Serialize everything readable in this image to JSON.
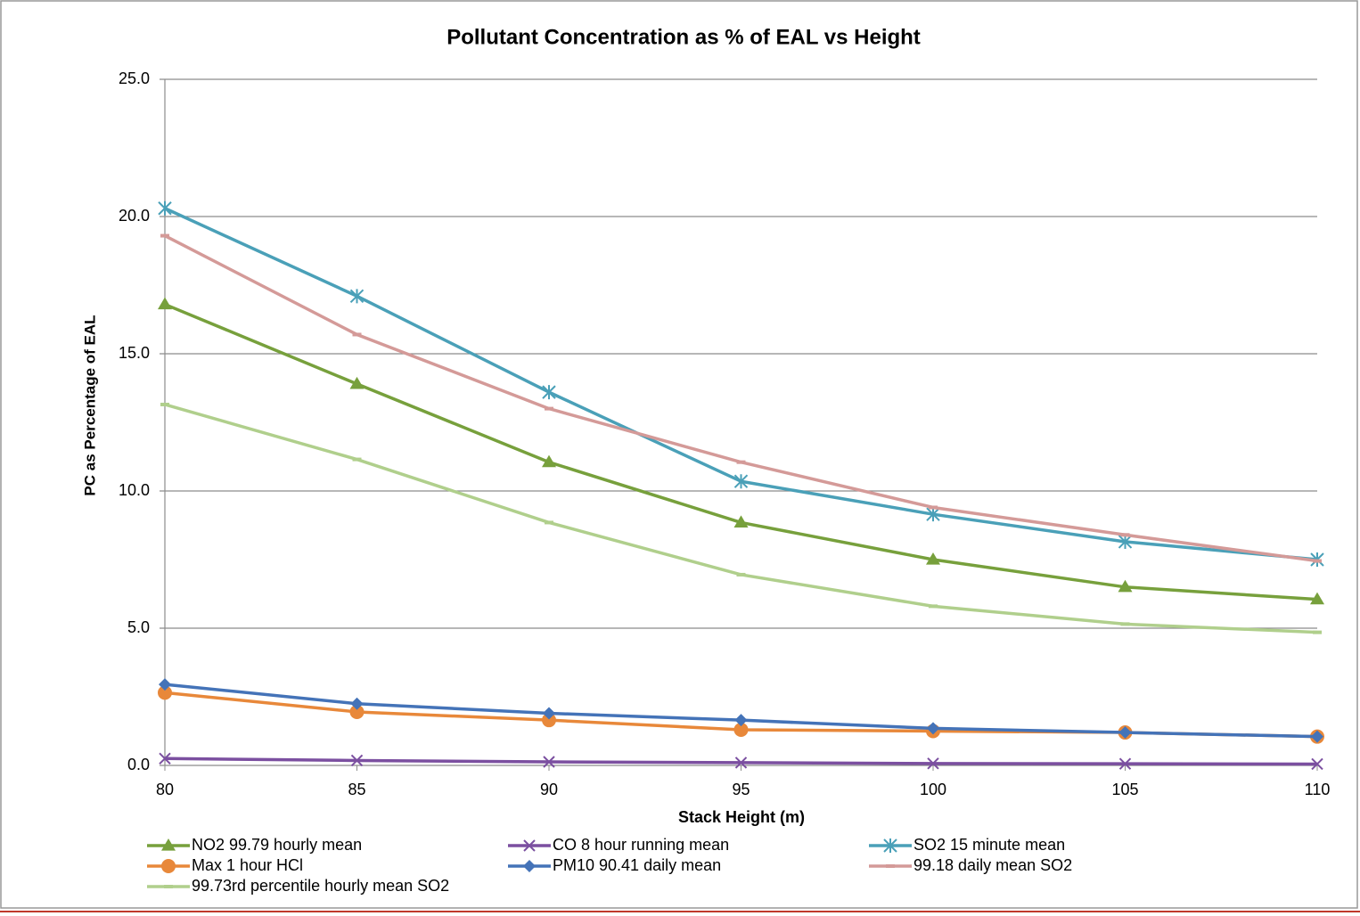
{
  "chart_data": {
    "type": "line",
    "title": "Pollutant Concentration as % of EAL vs Height",
    "xlabel": "Stack Height (m)",
    "ylabel": "PC as Percentage of EAL",
    "x": [
      80,
      85,
      90,
      95,
      100,
      105,
      110
    ],
    "xlim": [
      80,
      110
    ],
    "xticks": [
      80,
      85,
      90,
      95,
      100,
      105,
      110
    ],
    "ylim": [
      0,
      25
    ],
    "yticks": [
      {
        "value": 0,
        "label": "0.0"
      },
      {
        "value": 5,
        "label": "5.0"
      },
      {
        "value": 10,
        "label": "10.0"
      },
      {
        "value": 15,
        "label": "15.0"
      },
      {
        "value": 20,
        "label": "20.0"
      },
      {
        "value": 25,
        "label": "25.0"
      }
    ],
    "grid": true,
    "legend": "bottom",
    "series": [
      {
        "name": "NO2 99.79 hourly mean",
        "color": "#77a03c",
        "marker": "triangle",
        "values": [
          16.8,
          13.9,
          11.05,
          8.85,
          7.5,
          6.5,
          6.05
        ]
      },
      {
        "name": "CO 8 hour running mean",
        "color": "#7b4fa0",
        "marker": "x",
        "values": [
          0.25,
          0.18,
          0.13,
          0.1,
          0.07,
          0.06,
          0.05
        ]
      },
      {
        "name": "SO2 15 minute mean",
        "color": "#4aa0b8",
        "marker": "star",
        "values": [
          20.3,
          17.1,
          13.6,
          10.35,
          9.15,
          8.15,
          7.5
        ]
      },
      {
        "name": "Max 1 hour HCl",
        "color": "#e8883a",
        "marker": "circle",
        "values": [
          2.65,
          1.95,
          1.65,
          1.3,
          1.25,
          1.2,
          1.05
        ]
      },
      {
        "name": "PM10 90.41 daily mean",
        "color": "#4473b8",
        "marker": "diamond",
        "values": [
          2.95,
          2.25,
          1.9,
          1.65,
          1.35,
          1.2,
          1.05
        ]
      },
      {
        "name": "99.18 daily mean SO2",
        "color": "#d49a98",
        "marker": "dash",
        "values": [
          19.3,
          15.7,
          13.0,
          11.05,
          9.4,
          8.4,
          7.45
        ]
      },
      {
        "name": "99.73rd percentile hourly mean SO2",
        "color": "#b0cf8c",
        "marker": "dash",
        "values": [
          13.15,
          11.15,
          8.85,
          6.95,
          5.8,
          5.15,
          4.85
        ]
      }
    ]
  }
}
